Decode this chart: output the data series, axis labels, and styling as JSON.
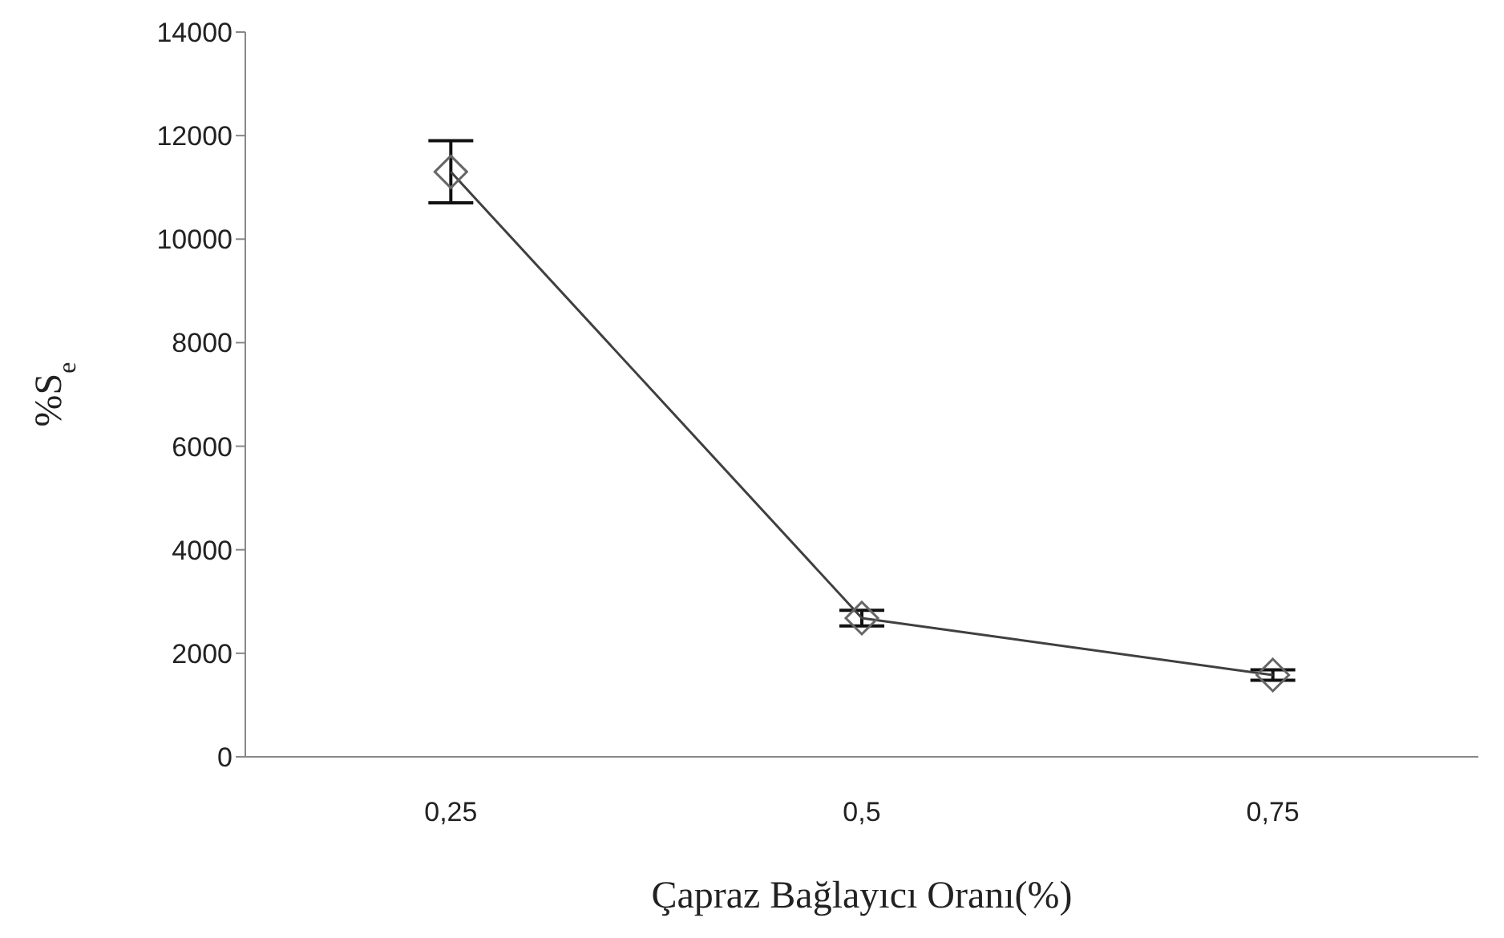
{
  "chart_data": {
    "type": "line",
    "xlabel": "Çapraz Bağlayıcı Oranı(%)",
    "ylabel": "%S$_{e}$",
    "categories": [
      "0,25",
      "0,5",
      "0,75"
    ],
    "series": [
      {
        "color": "#404040",
        "values": [
          11300,
          2680,
          1580
        ],
        "errors": [
          600,
          150,
          100
        ]
      }
    ],
    "ylim": [
      0,
      14000
    ],
    "yticks": [
      0,
      2000,
      4000,
      6000,
      8000,
      10000,
      12000,
      14000
    ],
    "marker": "diamond",
    "line_style": "solid",
    "grid": false,
    "legend": false
  }
}
